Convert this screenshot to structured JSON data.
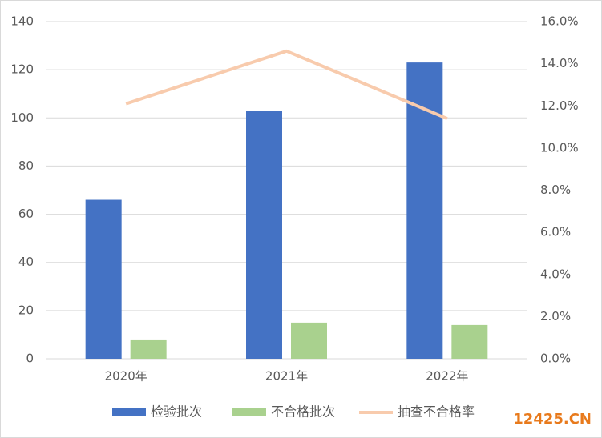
{
  "chart_data": {
    "type": "bar",
    "categories": [
      "2020年",
      "2021年",
      "2022年"
    ],
    "series": [
      {
        "name": "检验批次",
        "color": "#4472c4",
        "values": [
          66,
          103,
          123
        ]
      },
      {
        "name": "不合格批次",
        "color": "#a9d18e",
        "values": [
          8,
          15,
          14
        ]
      },
      {
        "name": "抽查不合格率",
        "type": "line",
        "axis": "y2",
        "color": "#f8cbad",
        "values": [
          12.1,
          14.6,
          11.4
        ]
      }
    ],
    "ylim": [
      0,
      140
    ],
    "yticks": [
      0,
      20,
      40,
      60,
      80,
      100,
      120,
      140
    ],
    "y2lim": [
      0,
      16
    ],
    "y2ticks": [
      {
        "value": 0,
        "label": "0.0%"
      },
      {
        "value": 2,
        "label": "2.0%"
      },
      {
        "value": 4,
        "label": "4.0%"
      },
      {
        "value": 6,
        "label": "6.0%"
      },
      {
        "value": 8,
        "label": "8.0%"
      },
      {
        "value": 10,
        "label": "10.0%"
      },
      {
        "value": 12,
        "label": "12.0%"
      },
      {
        "value": 14,
        "label": "14.0%"
      },
      {
        "value": 16,
        "label": "16.0%"
      }
    ],
    "grid": true,
    "legend": "bottom",
    "watermark": "12425.CN"
  }
}
